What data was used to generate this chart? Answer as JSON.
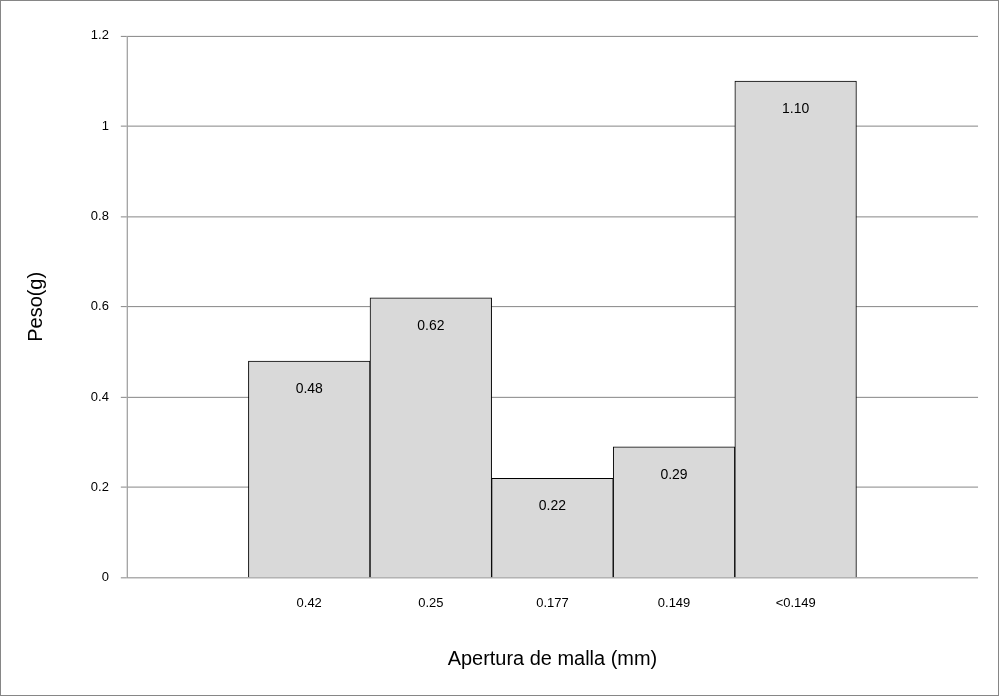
{
  "chart_data": {
    "type": "bar",
    "xlabel": "Apertura de malla (mm)",
    "ylabel": "Peso(g)",
    "categories": [
      null,
      "0.42",
      "0.25",
      "0.177",
      "0.149",
      "<0.149",
      null
    ],
    "values": [
      null,
      0.48,
      0.62,
      0.22,
      0.29,
      1.1,
      null
    ],
    "value_labels": [
      null,
      "0.48",
      "0.62",
      "0.22",
      "0.29",
      "1.10",
      null
    ],
    "color": "#d9d9d9",
    "ylim": [
      0,
      1.2
    ],
    "yticks": [
      0,
      0.2,
      0.4,
      0.6,
      0.8,
      1,
      1.2
    ],
    "grid": "y",
    "legend": false
  }
}
